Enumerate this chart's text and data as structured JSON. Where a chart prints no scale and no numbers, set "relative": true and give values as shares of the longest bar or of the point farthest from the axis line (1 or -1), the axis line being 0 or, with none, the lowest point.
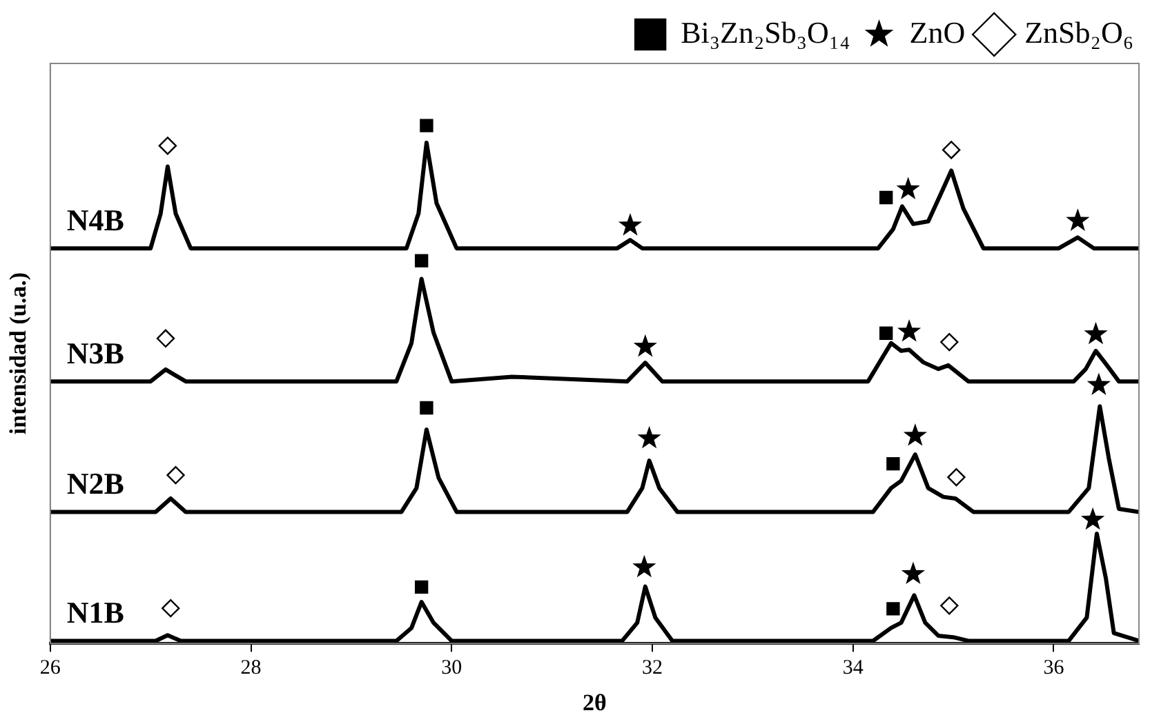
{
  "chart_data": {
    "type": "line",
    "relative": true,
    "xlabel": "2θ",
    "ylabel": "intensidad (u.a.)",
    "xlim": [
      26,
      36.85
    ],
    "xticks": [
      26,
      28,
      30,
      32,
      34,
      36
    ],
    "legend": "top right",
    "marker": "none",
    "line_style": "solid",
    "series": [
      {
        "name": "N1B",
        "color": "#000000",
        "x": [
          26,
          27.05,
          27.17,
          27.3,
          29.45,
          29.6,
          29.7,
          29.82,
          30.0,
          31.7,
          31.85,
          31.93,
          32.03,
          32.2,
          34.2,
          34.38,
          34.48,
          34.61,
          34.72,
          34.85,
          35.0,
          35.15,
          36.15,
          36.33,
          36.43,
          36.52,
          36.6,
          36.85
        ],
        "values": [
          0.005,
          0.005,
          0.016,
          0.005,
          0.005,
          0.03,
          0.08,
          0.04,
          0.005,
          0.005,
          0.04,
          0.11,
          0.05,
          0.005,
          0.005,
          0.03,
          0.04,
          0.093,
          0.04,
          0.015,
          0.012,
          0.005,
          0.005,
          0.05,
          0.212,
          0.126,
          0.02,
          0.005
        ]
      },
      {
        "name": "N2B",
        "color": "#000000",
        "x": [
          26,
          27.05,
          27.2,
          27.35,
          29.5,
          29.65,
          29.75,
          29.87,
          30.05,
          31.75,
          31.9,
          31.97,
          32.07,
          32.25,
          34.2,
          34.38,
          34.48,
          34.62,
          34.75,
          34.9,
          35.02,
          35.2,
          36.15,
          36.35,
          36.46,
          36.55,
          36.65,
          36.85
        ],
        "values": [
          0.254,
          0.254,
          0.28,
          0.254,
          0.254,
          0.3,
          0.413,
          0.32,
          0.254,
          0.254,
          0.3,
          0.353,
          0.3,
          0.254,
          0.254,
          0.3,
          0.314,
          0.365,
          0.3,
          0.283,
          0.28,
          0.254,
          0.254,
          0.3,
          0.458,
          0.357,
          0.26,
          0.254
        ]
      },
      {
        "name": "N3B",
        "color": "#000000",
        "x": [
          26,
          27.0,
          27.15,
          27.35,
          29.45,
          29.6,
          29.7,
          29.82,
          30.0,
          30.6,
          31.75,
          31.93,
          32.1,
          34.15,
          34.38,
          34.48,
          34.56,
          34.7,
          34.85,
          34.95,
          35.15,
          36.2,
          36.32,
          36.42,
          36.52,
          36.65,
          36.85
        ],
        "values": [
          0.506,
          0.506,
          0.529,
          0.506,
          0.506,
          0.58,
          0.704,
          0.6,
          0.506,
          0.515,
          0.506,
          0.542,
          0.506,
          0.506,
          0.58,
          0.565,
          0.567,
          0.543,
          0.53,
          0.537,
          0.506,
          0.506,
          0.53,
          0.565,
          0.54,
          0.506,
          0.506
        ]
      },
      {
        "name": "N4B",
        "color": "#000000",
        "x": [
          26,
          27.0,
          27.1,
          27.17,
          27.25,
          27.4,
          29.55,
          29.67,
          29.75,
          29.85,
          30.05,
          31.65,
          31.78,
          31.9,
          34.25,
          34.4,
          34.49,
          34.6,
          34.75,
          34.88,
          34.98,
          35.1,
          35.3,
          36.05,
          36.24,
          36.4,
          36.85
        ],
        "values": [
          0.763,
          0.763,
          0.83,
          0.921,
          0.83,
          0.763,
          0.763,
          0.83,
          0.967,
          0.85,
          0.763,
          0.763,
          0.779,
          0.763,
          0.763,
          0.8,
          0.844,
          0.81,
          0.815,
          0.87,
          0.913,
          0.84,
          0.763,
          0.763,
          0.784,
          0.763,
          0.763
        ]
      },
      {
        "name": "Bi₃Zn₂Sb₃O₁₄",
        "type": "scatter",
        "marker": "square",
        "color": "#000000",
        "x": [
          29.7,
          34.4,
          29.75,
          34.4,
          29.7,
          34.33,
          29.75,
          34.33
        ],
        "values": [
          0.109,
          0.067,
          0.455,
          0.347,
          0.739,
          0.599,
          1.0,
          0.861
        ]
      },
      {
        "name": "ZnO",
        "type": "scatter",
        "marker": "star",
        "color": "#000000",
        "x": [
          31.92,
          34.6,
          36.39,
          31.97,
          34.62,
          36.45,
          31.93,
          34.56,
          36.42,
          31.78,
          34.55,
          36.24
        ],
        "values": [
          0.147,
          0.134,
          0.239,
          0.396,
          0.401,
          0.499,
          0.573,
          0.602,
          0.597,
          0.807,
          0.877,
          0.816
        ]
      },
      {
        "name": "ZnSb₂O₆",
        "type": "scatter",
        "marker": "diamond",
        "color": "#000000",
        "x": [
          27.2,
          34.96,
          27.25,
          35.03,
          27.15,
          34.96,
          27.17,
          34.98
        ],
        "values": [
          0.068,
          0.073,
          0.325,
          0.321,
          0.589,
          0.582,
          0.961,
          0.953
        ]
      }
    ]
  }
}
